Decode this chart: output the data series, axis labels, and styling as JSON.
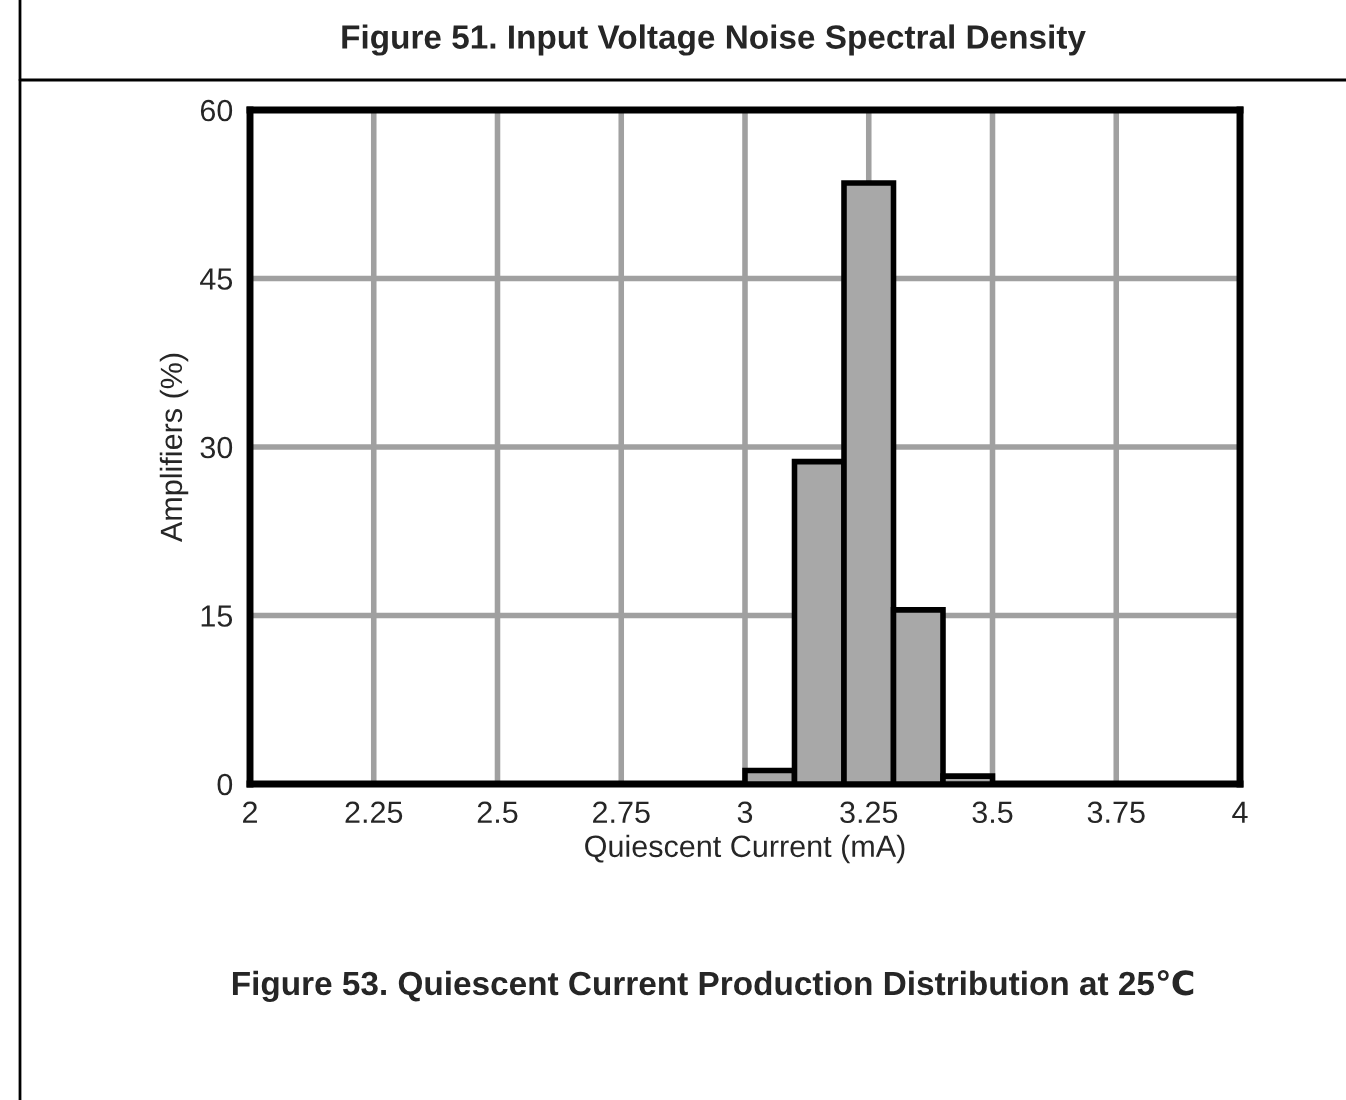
{
  "chart_data": {
    "type": "histogram",
    "title": "Figure 51. Input Voltage Noise Spectral Density",
    "xlabel": "Quiescent Current (mA)",
    "ylabel": "Amplifiers (%)",
    "annotations": [
      "Figure 53. Quiescent Current Production Distribution at 25℃"
    ],
    "bins": [
      3.0,
      3.1,
      3.2,
      3.3,
      3.4,
      3.5
    ],
    "values": [
      1.2,
      28.7,
      53.5,
      15.5,
      0.7
    ],
    "color": "#a8a8a8",
    "xlim": [
      2,
      4
    ],
    "xticks": [
      2,
      2.25,
      2.5,
      2.75,
      3,
      3.25,
      3.5,
      3.75,
      4
    ],
    "ylim": [
      0,
      60
    ],
    "yticks": [
      0,
      15,
      30,
      45,
      60
    ],
    "grid": true
  }
}
